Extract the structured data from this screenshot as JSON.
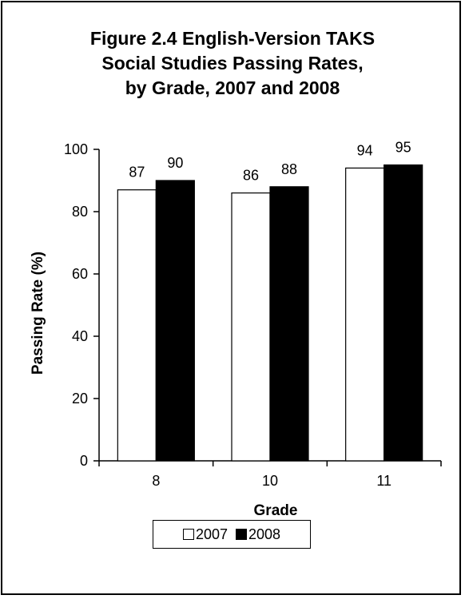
{
  "chart_data": {
    "type": "bar",
    "title_lines": [
      "Figure 2.4 English-Version TAKS",
      "Social Studies Passing Rates,",
      "by Grade, 2007 and 2008"
    ],
    "xlabel": "Grade",
    "ylabel": "Passing Rate (%)",
    "categories": [
      "8",
      "10",
      "11"
    ],
    "series": [
      {
        "name": "2007",
        "values": [
          87,
          86,
          94
        ],
        "color": "#ffffff"
      },
      {
        "name": "2008",
        "values": [
          90,
          88,
          95
        ],
        "color": "#000000"
      }
    ],
    "ylim": [
      0,
      100
    ],
    "yticks": [
      0,
      20,
      40,
      60,
      80,
      100
    ],
    "grid": false,
    "legend_position": "bottom"
  }
}
